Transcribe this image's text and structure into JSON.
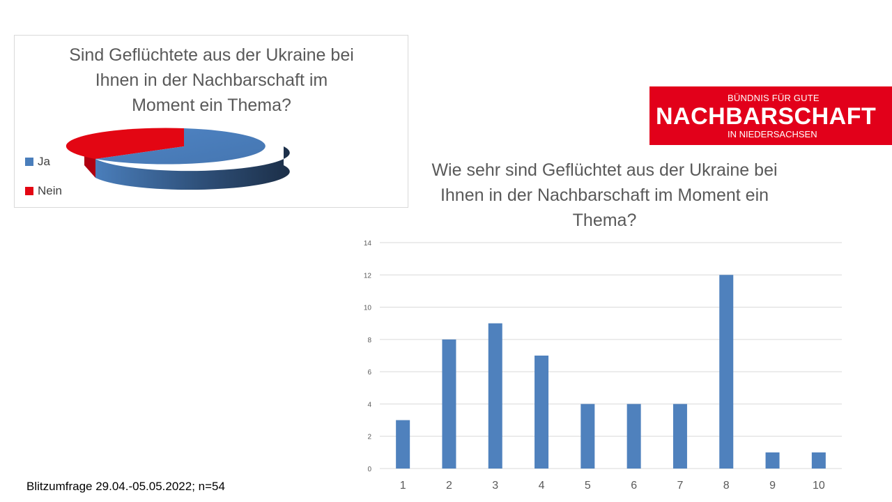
{
  "colors": {
    "ja": "#4a7ebb",
    "nein": "#e30613",
    "bar": "#4f81bd",
    "grid": "#d9d9d9",
    "logo_bg": "#e2001a"
  },
  "pie_chart": {
    "title": "Sind Geflüchtete aus der Ukraine bei Ihnen in der Nachbarschaft im Moment ein Thema?",
    "legend": [
      {
        "label": "Ja",
        "color": "#4a7ebb"
      },
      {
        "label": "Nein",
        "color": "#e30613"
      }
    ]
  },
  "logo": {
    "line1": "BÜNDNIS FÜR GUTE",
    "line2": "NACHBARSCHAFT",
    "line3": "IN NIEDERSACHSEN"
  },
  "footnote": "Blitzumfrage 29.04.-05.05.2022; n=54",
  "chart_data": [
    {
      "type": "pie",
      "style": "3d",
      "title": "Sind Geflüchtete aus der Ukraine bei Ihnen in der Nachbarschaft im Moment ein Thema?",
      "categories": [
        "Ja",
        "Nein"
      ],
      "values": [
        79,
        21
      ],
      "legend": "left"
    },
    {
      "type": "bar",
      "title": "Wie sehr sind Geflüchtet aus der Ukraine bei Ihnen in der Nachbarschaft im Moment ein Thema?",
      "categories": [
        "1",
        "2",
        "3",
        "4",
        "5",
        "6",
        "7",
        "8",
        "9",
        "10"
      ],
      "values": [
        3,
        8,
        9,
        7,
        4,
        4,
        4,
        12,
        1,
        1
      ],
      "ylim": [
        0,
        14
      ],
      "yticks": [
        "0",
        "2",
        "4",
        "6",
        "8",
        "10",
        "12",
        "14"
      ],
      "grid": true,
      "xlabel": "",
      "ylabel": ""
    }
  ]
}
